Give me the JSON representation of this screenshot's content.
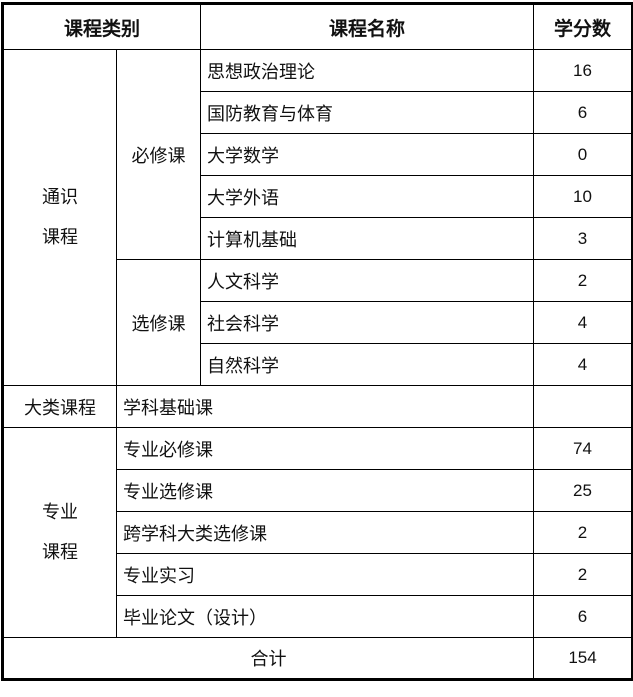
{
  "headers": {
    "category": "课程类别",
    "name": "课程名称",
    "credits": "学分数"
  },
  "general": {
    "label_line1": "通识",
    "label_line2": "课程",
    "required": {
      "label": "必修课",
      "rows": [
        {
          "name": "思想政治理论",
          "credits": "16"
        },
        {
          "name": "国防教育与体育",
          "credits": "6"
        },
        {
          "name": "大学数学",
          "credits": "0"
        },
        {
          "name": "大学外语",
          "credits": "10"
        },
        {
          "name": "计算机基础",
          "credits": "3"
        }
      ]
    },
    "elective": {
      "label": "选修课",
      "rows": [
        {
          "name": "人文科学",
          "credits": "2"
        },
        {
          "name": "社会科学",
          "credits": "4"
        },
        {
          "name": "自然科学",
          "credits": "4"
        }
      ]
    }
  },
  "broad": {
    "label": "大类课程",
    "name": "学科基础课",
    "credits": ""
  },
  "major": {
    "label_line1": "专业",
    "label_line2": "课程",
    "rows": [
      {
        "name": "专业必修课",
        "credits": "74"
      },
      {
        "name": "专业选修课",
        "credits": "25"
      },
      {
        "name": "跨学科大类选修课",
        "credits": "2"
      },
      {
        "name": "专业实习",
        "credits": "2"
      },
      {
        "name": "毕业论文（设计）",
        "credits": "6"
      }
    ]
  },
  "total": {
    "label": "合计",
    "credits": "154"
  }
}
